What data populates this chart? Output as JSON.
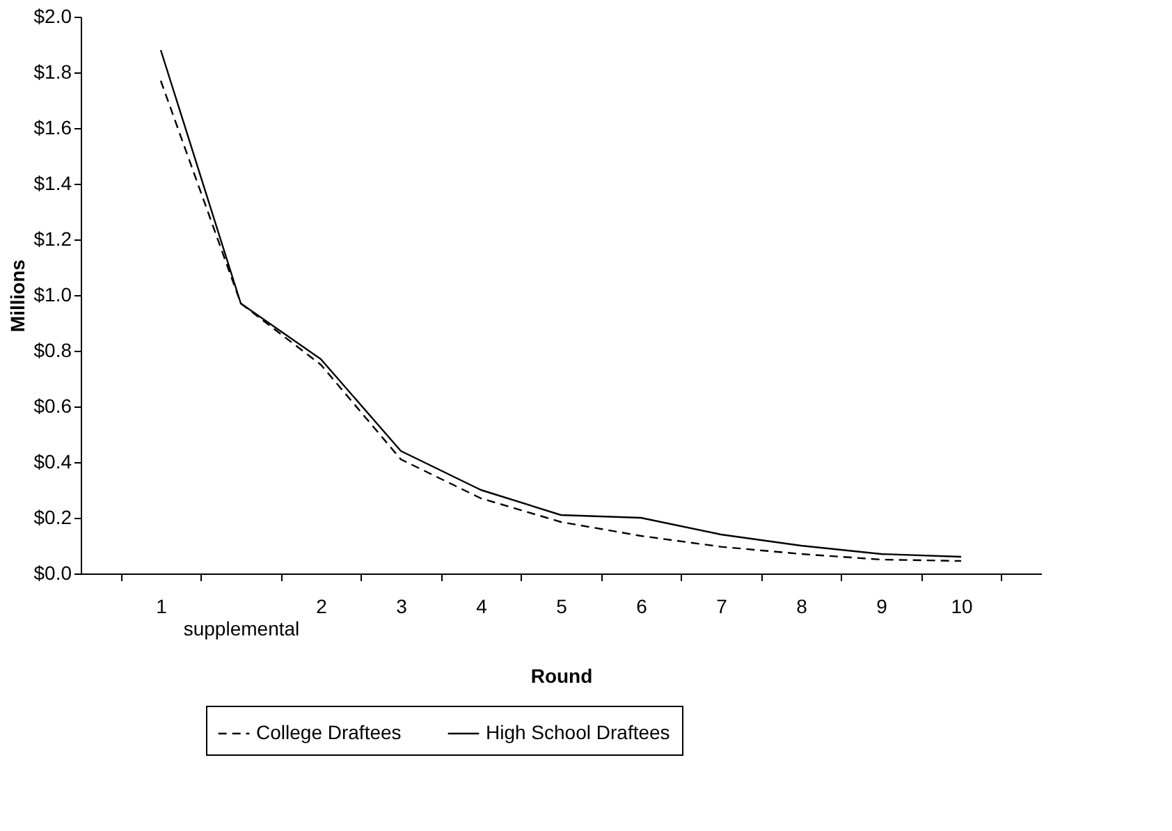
{
  "chart_data": {
    "type": "line",
    "xlabel": "Round",
    "ylabel": "Millions",
    "categories": [
      "1",
      "supplemental",
      "2",
      "3",
      "4",
      "5",
      "6",
      "7",
      "8",
      "9",
      "10"
    ],
    "series": [
      {
        "name": "College Draftees",
        "color": "#000000",
        "line_style": "dashed",
        "values": [
          1.77,
          0.97,
          0.75,
          0.41,
          0.27,
          0.185,
          0.135,
          0.096,
          0.07,
          0.05,
          0.045
        ]
      },
      {
        "name": "High School Draftees",
        "color": "#000000",
        "line_style": "solid",
        "values": [
          1.88,
          0.97,
          0.77,
          0.44,
          0.3,
          0.21,
          0.2,
          0.14,
          0.1,
          0.07,
          0.06
        ]
      }
    ],
    "ylim": [
      0,
      2.0
    ],
    "yticks": [
      {
        "value": 0,
        "label": "$0.0"
      },
      {
        "value": 0.2,
        "label": "$0.2"
      },
      {
        "value": 0.4,
        "label": "$0.4"
      },
      {
        "value": 0.6,
        "label": "$0.6"
      },
      {
        "value": 0.8,
        "label": "$0.8"
      },
      {
        "value": 1.0,
        "label": "$1.0"
      },
      {
        "value": 1.2,
        "label": "$1.2"
      },
      {
        "value": 1.4,
        "label": "$1.4"
      },
      {
        "value": 1.6,
        "label": "$1.6"
      },
      {
        "value": 1.8,
        "label": "$1.8"
      },
      {
        "value": 2.0,
        "label": "$2.0"
      }
    ],
    "grid": false,
    "legend": "bottom",
    "marker": "none"
  }
}
